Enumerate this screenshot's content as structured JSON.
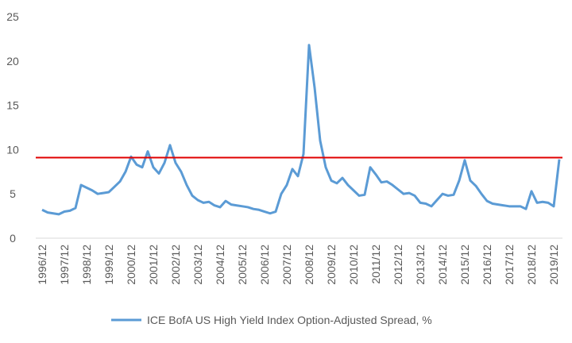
{
  "chart_data": {
    "type": "line",
    "categories": [
      "1996/12",
      null,
      null,
      null,
      "1997/12",
      null,
      null,
      null,
      "1998/12",
      null,
      null,
      null,
      "1999/12",
      null,
      null,
      null,
      "2000/12",
      null,
      null,
      null,
      "2001/12",
      null,
      null,
      null,
      "2002/12",
      null,
      null,
      null,
      "2003/12",
      null,
      null,
      null,
      "2004/12",
      null,
      null,
      null,
      "2005/12",
      null,
      null,
      null,
      "2006/12",
      null,
      null,
      null,
      "2007/12",
      null,
      null,
      null,
      "2008/12",
      null,
      null,
      null,
      "2009/12",
      null,
      null,
      null,
      "2010/12",
      null,
      null,
      null,
      "2011/12",
      null,
      null,
      null,
      "2012/12",
      null,
      null,
      null,
      "2013/12",
      null,
      null,
      null,
      "2014/12",
      null,
      null,
      null,
      "2015/12",
      null,
      null,
      null,
      "2016/12",
      null,
      null,
      null,
      "2017/12",
      null,
      null,
      null,
      "2018/12",
      null,
      null,
      null,
      "2019/12",
      null
    ],
    "series": [
      {
        "name": "ICE BofA US High Yield Index Option-Adjusted Spread, %",
        "color": "#5b9bd5",
        "values": [
          3.2,
          2.9,
          2.8,
          2.7,
          3.0,
          3.1,
          3.4,
          6.0,
          5.7,
          5.4,
          5.0,
          5.1,
          5.2,
          5.8,
          6.4,
          7.5,
          9.2,
          8.3,
          8.0,
          9.8,
          8.0,
          7.3,
          8.5,
          10.5,
          8.5,
          7.5,
          6.0,
          4.8,
          4.3,
          4.0,
          4.1,
          3.7,
          3.5,
          4.2,
          3.8,
          3.7,
          3.6,
          3.5,
          3.3,
          3.2,
          3.0,
          2.8,
          3.0,
          5.0,
          6.0,
          7.8,
          7.0,
          9.5,
          21.8,
          17.0,
          11.0,
          8.0,
          6.5,
          6.2,
          6.8,
          6.0,
          5.4,
          4.8,
          4.9,
          8.0,
          7.2,
          6.3,
          6.4,
          6.0,
          5.5,
          5.0,
          5.1,
          4.8,
          4.0,
          3.9,
          3.6,
          4.3,
          5.0,
          4.8,
          4.9,
          6.5,
          8.8,
          6.5,
          5.9,
          5.0,
          4.2,
          3.9,
          3.8,
          3.7,
          3.6,
          3.6,
          3.6,
          3.3,
          5.3,
          4.0,
          4.1,
          4.0,
          3.6,
          8.9
        ]
      }
    ],
    "reference_line": 9.1,
    "reference_color": "#e00000",
    "ylim": [
      0,
      25
    ],
    "yticks": [
      0,
      5,
      10,
      15,
      20,
      25
    ],
    "grid": false,
    "legend": "bottom"
  }
}
